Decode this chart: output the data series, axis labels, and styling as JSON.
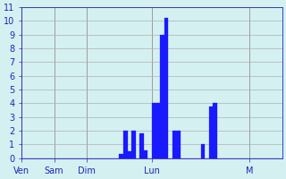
{
  "bar_values": [
    0,
    0,
    0,
    0,
    0,
    0,
    0,
    0,
    0,
    0,
    0,
    0,
    0,
    0,
    0,
    0,
    0,
    0,
    0,
    0,
    0,
    0,
    0,
    0,
    0.3,
    2,
    0.5,
    2,
    0,
    1.8,
    0.6,
    0,
    4,
    4,
    9,
    10.2,
    0,
    2,
    2,
    0,
    0,
    0,
    0,
    0,
    1,
    0,
    3.8,
    4,
    0,
    0,
    0,
    0,
    0,
    0,
    0,
    0,
    0,
    0,
    0,
    0,
    0,
    0,
    0,
    0
  ],
  "day_labels": [
    "Ven",
    "Sam",
    "Dim",
    "Lun",
    "M"
  ],
  "day_tick_positions": [
    0,
    8,
    16,
    32,
    56
  ],
  "ylim": [
    0,
    11
  ],
  "yticks": [
    0,
    1,
    2,
    3,
    4,
    5,
    6,
    7,
    8,
    9,
    10,
    11
  ],
  "bar_color": "#1a1aff",
  "bg_color": "#d4f0f0",
  "grid_color": "#b0b0b0",
  "tick_label_color": "#2222bb",
  "vline_color": "#777777"
}
